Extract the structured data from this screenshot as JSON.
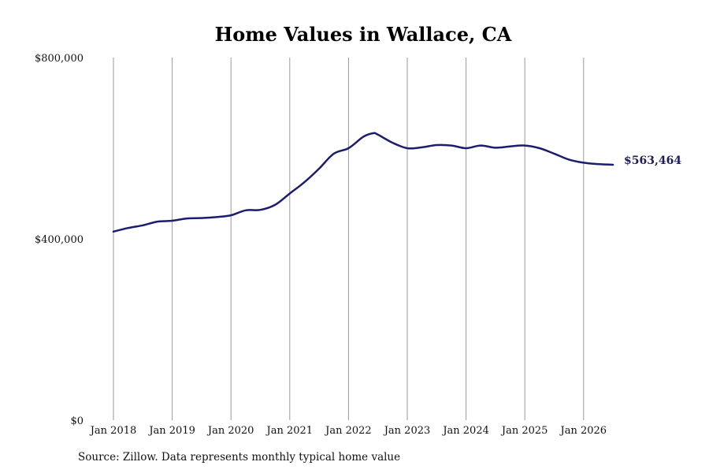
{
  "chart_data": {
    "type": "line",
    "title": "Home Values in Wallace, CA",
    "xlabel": "",
    "ylabel": "",
    "source": "Source: Zillow. Data represents monthly typical home value",
    "end_label": "$563,464",
    "line_color": "#1b1d6e",
    "grid": "vertical",
    "xlim": [
      "2018-01",
      "2026-07"
    ],
    "ylim": [
      0,
      800000
    ],
    "y_ticks": [
      {
        "value": 0,
        "label": "$0"
      },
      {
        "value": 400000,
        "label": "$400,000"
      },
      {
        "value": 800000,
        "label": "$800,000"
      }
    ],
    "x_ticks": [
      {
        "value": "2018-01",
        "label": "Jan 2018"
      },
      {
        "value": "2019-01",
        "label": "Jan 2019"
      },
      {
        "value": "2020-01",
        "label": "Jan 2020"
      },
      {
        "value": "2021-01",
        "label": "Jan 2021"
      },
      {
        "value": "2022-01",
        "label": "Jan 2022"
      },
      {
        "value": "2023-01",
        "label": "Jan 2023"
      },
      {
        "value": "2024-01",
        "label": "Jan 2024"
      },
      {
        "value": "2025-01",
        "label": "Jan 2025"
      },
      {
        "value": "2026-01",
        "label": "Jan 2026"
      }
    ],
    "series": [
      {
        "points": [
          [
            "2018-01",
            416000
          ],
          [
            "2018-04",
            424000
          ],
          [
            "2018-07",
            430000
          ],
          [
            "2018-10",
            438000
          ],
          [
            "2019-01",
            440000
          ],
          [
            "2019-04",
            445000
          ],
          [
            "2019-07",
            446000
          ],
          [
            "2019-10",
            448000
          ],
          [
            "2020-01",
            452000
          ],
          [
            "2020-04",
            463000
          ],
          [
            "2020-07",
            464000
          ],
          [
            "2020-10",
            475000
          ],
          [
            "2021-01",
            500000
          ],
          [
            "2021-04",
            525000
          ],
          [
            "2021-07",
            555000
          ],
          [
            "2021-10",
            588000
          ],
          [
            "2022-01",
            600000
          ],
          [
            "2022-04",
            625000
          ],
          [
            "2022-06",
            633000
          ],
          [
            "2022-07",
            630000
          ],
          [
            "2022-10",
            612000
          ],
          [
            "2023-01",
            600000
          ],
          [
            "2023-04",
            602000
          ],
          [
            "2023-07",
            607000
          ],
          [
            "2023-10",
            606000
          ],
          [
            "2024-01",
            600000
          ],
          [
            "2024-04",
            606000
          ],
          [
            "2024-07",
            601000
          ],
          [
            "2024-10",
            604000
          ],
          [
            "2025-01",
            606000
          ],
          [
            "2025-04",
            600000
          ],
          [
            "2025-07",
            588000
          ],
          [
            "2025-10",
            575000
          ],
          [
            "2026-01",
            568000
          ],
          [
            "2026-04",
            565000
          ],
          [
            "2026-07",
            563464
          ]
        ]
      }
    ]
  }
}
